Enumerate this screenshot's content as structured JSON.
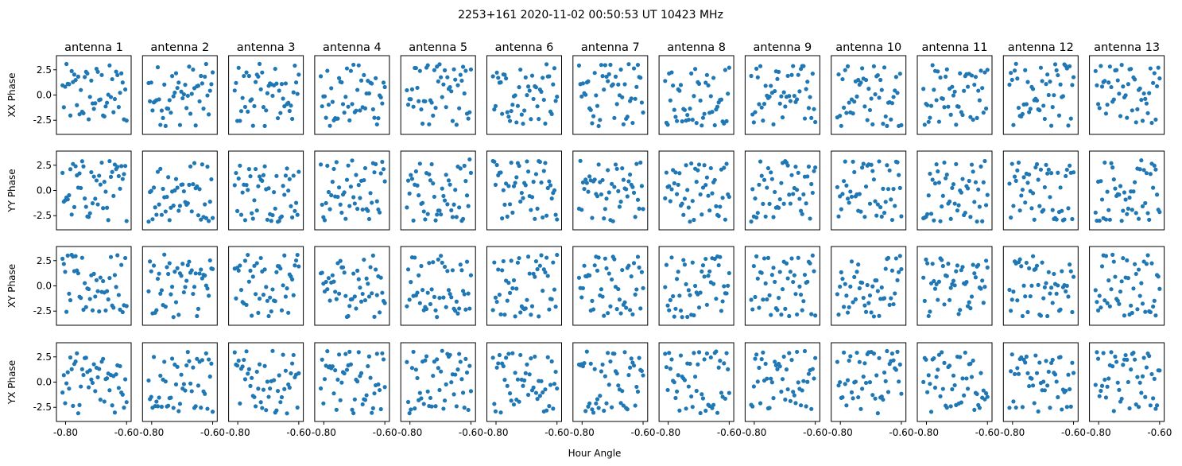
{
  "chart_data": {
    "type": "scatter",
    "title": "2253+161  2020-11-02 00:50:53 UT  10423 MHz",
    "xlabel": "Hour Angle",
    "columns": [
      "antenna 1",
      "antenna 2",
      "antenna 3",
      "antenna 4",
      "antenna 5",
      "antenna 6",
      "antenna 7",
      "antenna 8",
      "antenna 9",
      "antenna 10",
      "antenna 11",
      "antenna 12",
      "antenna 13"
    ],
    "rows": [
      {
        "ylabel": "XX Phase"
      },
      {
        "ylabel": "YY Phase"
      },
      {
        "ylabel": "XY Phase"
      },
      {
        "ylabel": "YX Phase"
      }
    ],
    "xlim": [
      -0.83,
      -0.585
    ],
    "ylim": [
      -3.9,
      3.9
    ],
    "xticks": [
      -0.8,
      -0.6
    ],
    "xtick_labels": [
      "-0.80",
      "-0.60"
    ],
    "yticks": [
      2.5,
      0.0,
      -2.5
    ],
    "ytick_labels": [
      "2.5",
      "0.0",
      "-2.5"
    ],
    "color": "#1f77b4",
    "points_per_panel": 50,
    "grid": false,
    "marker": "circle"
  }
}
